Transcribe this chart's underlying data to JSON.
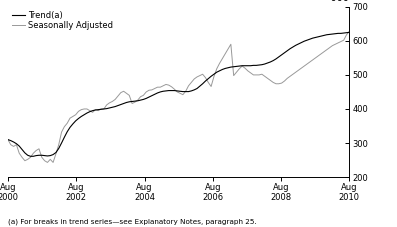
{
  "footnote": "(a) For breaks in trend series—see Explanatory Notes, paragraph 25.",
  "legend": [
    "Trend(a)",
    "Seasonally Adjusted"
  ],
  "line_colors": [
    "#000000",
    "#999999"
  ],
  "ylim": [
    200,
    700
  ],
  "yticks": [
    200,
    300,
    400,
    500,
    600,
    700
  ],
  "xtick_labels": [
    "Aug\n2000",
    "Aug\n2002",
    "Aug\n2004",
    "Aug\n2006",
    "Aug\n2008",
    "Aug\n2010"
  ],
  "xtick_positions": [
    0,
    24,
    48,
    72,
    96,
    120
  ],
  "trend": [
    310,
    307,
    303,
    298,
    291,
    281,
    271,
    264,
    261,
    261,
    263,
    264,
    264,
    263,
    262,
    263,
    266,
    272,
    284,
    300,
    317,
    333,
    346,
    356,
    365,
    372,
    378,
    383,
    388,
    392,
    395,
    397,
    398,
    399,
    400,
    401,
    403,
    405,
    407,
    410,
    413,
    416,
    419,
    421,
    422,
    423,
    424,
    426,
    428,
    431,
    435,
    439,
    443,
    447,
    450,
    452,
    453,
    454,
    454,
    454,
    453,
    452,
    451,
    451,
    451,
    453,
    456,
    460,
    467,
    474,
    482,
    489,
    496,
    502,
    508,
    512,
    516,
    519,
    521,
    523,
    524,
    525,
    526,
    527,
    527,
    527,
    527,
    528,
    528,
    529,
    530,
    532,
    535,
    538,
    542,
    547,
    553,
    559,
    565,
    571,
    577,
    582,
    587,
    591,
    595,
    599,
    602,
    605,
    608,
    610,
    612,
    614,
    616,
    618,
    619,
    620,
    621,
    622,
    622,
    623,
    624,
    625
  ],
  "seasonal": [
    310,
    295,
    290,
    295,
    270,
    258,
    248,
    252,
    258,
    270,
    278,
    283,
    258,
    248,
    243,
    252,
    243,
    268,
    295,
    332,
    348,
    358,
    373,
    378,
    383,
    393,
    398,
    400,
    400,
    395,
    390,
    398,
    395,
    400,
    400,
    412,
    418,
    422,
    428,
    438,
    448,
    452,
    446,
    440,
    416,
    420,
    426,
    436,
    440,
    450,
    455,
    456,
    460,
    464,
    464,
    468,
    472,
    470,
    465,
    458,
    450,
    446,
    442,
    452,
    468,
    478,
    488,
    494,
    498,
    502,
    492,
    478,
    466,
    495,
    518,
    534,
    548,
    562,
    576,
    590,
    498,
    508,
    518,
    526,
    520,
    512,
    506,
    500,
    500,
    500,
    502,
    496,
    490,
    484,
    478,
    474,
    474,
    476,
    482,
    490,
    496,
    502,
    508,
    514,
    520,
    526,
    532,
    538,
    544,
    550,
    556,
    562,
    568,
    574,
    580,
    586,
    590,
    594,
    598,
    602,
    618,
    628
  ]
}
